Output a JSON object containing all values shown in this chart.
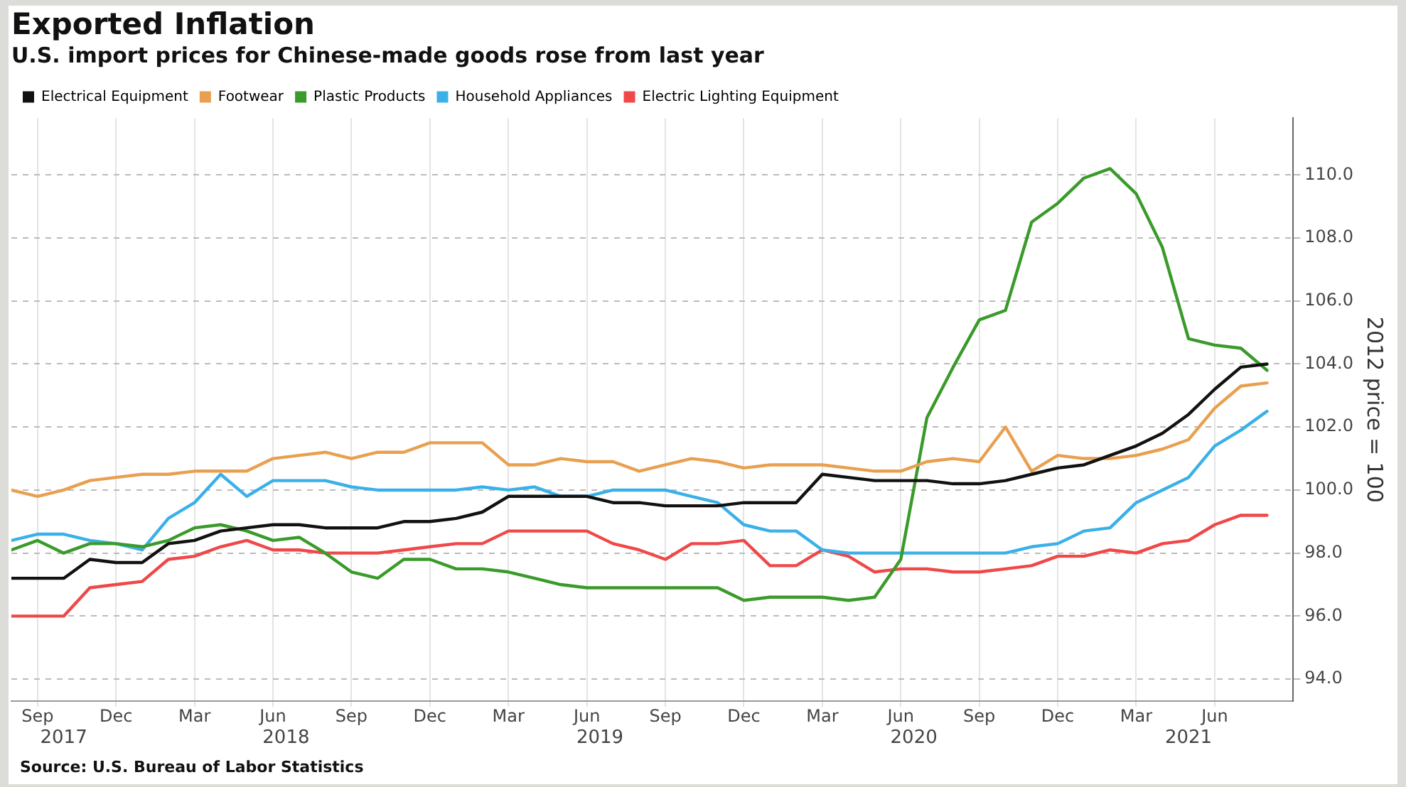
{
  "chart_data": {
    "type": "line",
    "title": "Exported Inflation",
    "subtitle": "U.S. import prices for Chinese-made goods rose from last year",
    "ylabel": "2012 price = 100",
    "x": [
      "2017-08",
      "2017-09",
      "2017-10",
      "2017-11",
      "2017-12",
      "2018-01",
      "2018-02",
      "2018-03",
      "2018-04",
      "2018-05",
      "2018-06",
      "2018-07",
      "2018-08",
      "2018-09",
      "2018-10",
      "2018-11",
      "2018-12",
      "2019-01",
      "2019-02",
      "2019-03",
      "2019-04",
      "2019-05",
      "2019-06",
      "2019-07",
      "2019-08",
      "2019-09",
      "2019-10",
      "2019-11",
      "2019-12",
      "2020-01",
      "2020-02",
      "2020-03",
      "2020-04",
      "2020-05",
      "2020-06",
      "2020-07",
      "2020-08",
      "2020-09",
      "2020-10",
      "2020-11",
      "2020-12",
      "2021-01",
      "2021-02",
      "2021-03",
      "2021-04",
      "2021-05",
      "2021-06",
      "2021-07",
      "2021-08"
    ],
    "series": [
      {
        "name": "Electrical Equipment",
        "color": "#111111",
        "values": [
          97.2,
          97.2,
          97.2,
          97.8,
          97.7,
          97.7,
          98.3,
          98.4,
          98.7,
          98.8,
          98.9,
          98.9,
          98.8,
          98.8,
          98.8,
          99.0,
          99.0,
          99.1,
          99.3,
          99.8,
          99.8,
          99.8,
          99.8,
          99.6,
          99.6,
          99.5,
          99.5,
          99.5,
          99.6,
          99.6,
          99.6,
          100.5,
          100.4,
          100.3,
          100.3,
          100.3,
          100.2,
          100.2,
          100.3,
          100.5,
          100.7,
          100.8,
          101.1,
          101.4,
          101.8,
          102.4,
          103.2,
          103.9,
          104.0
        ]
      },
      {
        "name": "Footwear",
        "color": "#e8a050",
        "values": [
          100.0,
          99.8,
          100.0,
          100.3,
          100.4,
          100.5,
          100.5,
          100.6,
          100.6,
          100.6,
          101.0,
          101.1,
          101.2,
          101.0,
          101.2,
          101.2,
          101.5,
          101.5,
          101.5,
          100.8,
          100.8,
          101.0,
          100.9,
          100.9,
          100.6,
          100.8,
          101.0,
          100.9,
          100.7,
          100.8,
          100.8,
          100.8,
          100.7,
          100.6,
          100.6,
          100.9,
          101.0,
          100.9,
          102.0,
          100.6,
          101.1,
          101.0,
          101.0,
          101.1,
          101.3,
          101.6,
          102.6,
          103.3,
          103.4
        ]
      },
      {
        "name": "Plastic Products",
        "color": "#3a9a2a",
        "values": [
          98.1,
          98.4,
          98.0,
          98.3,
          98.3,
          98.2,
          98.4,
          98.8,
          98.9,
          98.7,
          98.4,
          98.5,
          98.0,
          97.4,
          97.2,
          97.8,
          97.8,
          97.5,
          97.5,
          97.4,
          97.2,
          97.0,
          96.9,
          96.9,
          96.9,
          96.9,
          96.9,
          96.9,
          96.5,
          96.6,
          96.6,
          96.6,
          96.5,
          96.6,
          97.8,
          102.3,
          103.9,
          105.4,
          105.7,
          108.5,
          109.1,
          109.9,
          110.2,
          109.4,
          107.7,
          104.8,
          104.6,
          104.5,
          103.8
        ]
      },
      {
        "name": "Household Appliances",
        "color": "#3ab0e8",
        "values": [
          98.4,
          98.6,
          98.6,
          98.4,
          98.3,
          98.1,
          99.1,
          99.6,
          100.5,
          99.8,
          100.3,
          100.3,
          100.3,
          100.1,
          100.0,
          100.0,
          100.0,
          100.0,
          100.1,
          100.0,
          100.1,
          99.8,
          99.8,
          100.0,
          100.0,
          100.0,
          99.8,
          99.6,
          98.9,
          98.7,
          98.7,
          98.1,
          98.0,
          98.0,
          98.0,
          98.0,
          98.0,
          98.0,
          98.0,
          98.2,
          98.3,
          98.7,
          98.8,
          99.6,
          100.0,
          100.4,
          101.4,
          101.9,
          102.5
        ]
      },
      {
        "name": "Electric Lighting Equipment",
        "color": "#f04848",
        "values": [
          96.0,
          96.0,
          96.0,
          96.9,
          97.0,
          97.1,
          97.8,
          97.9,
          98.2,
          98.4,
          98.1,
          98.1,
          98.0,
          98.0,
          98.0,
          98.1,
          98.2,
          98.3,
          98.3,
          98.7,
          98.7,
          98.7,
          98.7,
          98.3,
          98.1,
          97.8,
          98.3,
          98.3,
          98.4,
          97.6,
          97.6,
          98.1,
          97.9,
          97.4,
          97.5,
          97.5,
          97.4,
          97.4,
          97.5,
          97.6,
          97.9,
          97.9,
          98.1,
          98.0,
          98.3,
          98.4,
          98.9,
          99.2,
          99.2
        ]
      }
    ],
    "xlim": [
      "2017-08",
      "2021-09"
    ],
    "xticks": [
      {
        "value": "2017-09",
        "label": "Sep"
      },
      {
        "value": "2017-12",
        "label": "Dec"
      },
      {
        "value": "2018-03",
        "label": "Mar"
      },
      {
        "value": "2018-06",
        "label": "Jun"
      },
      {
        "value": "2018-09",
        "label": "Sep"
      },
      {
        "value": "2018-12",
        "label": "Dec"
      },
      {
        "value": "2019-03",
        "label": "Mar"
      },
      {
        "value": "2019-06",
        "label": "Jun"
      },
      {
        "value": "2019-09",
        "label": "Sep"
      },
      {
        "value": "2019-12",
        "label": "Dec"
      },
      {
        "value": "2020-03",
        "label": "Mar"
      },
      {
        "value": "2020-06",
        "label": "Jun"
      },
      {
        "value": "2020-09",
        "label": "Sep"
      },
      {
        "value": "2020-12",
        "label": "Dec"
      },
      {
        "value": "2021-03",
        "label": "Mar"
      },
      {
        "value": "2021-06",
        "label": "Jun"
      }
    ],
    "ylim": [
      93.3,
      111.8
    ],
    "yticks": [
      {
        "value": 94,
        "label": "94.0"
      },
      {
        "value": 96,
        "label": "96.0"
      },
      {
        "value": 98,
        "label": "98.0"
      },
      {
        "value": 100,
        "label": "100.0"
      },
      {
        "value": 102,
        "label": "102.0"
      },
      {
        "value": 104,
        "label": "104.0"
      },
      {
        "value": 106,
        "label": "106.0"
      },
      {
        "value": 108,
        "label": "108.0"
      },
      {
        "value": 110,
        "label": "110.0"
      }
    ],
    "annotations": [
      "Source: U.S. Bureau of Labor Statistics",
      "2017",
      "2018",
      "2019",
      "2020",
      "2021"
    ],
    "grid": true,
    "legend": "top left",
    "marker": "none",
    "line_style": "solid"
  }
}
